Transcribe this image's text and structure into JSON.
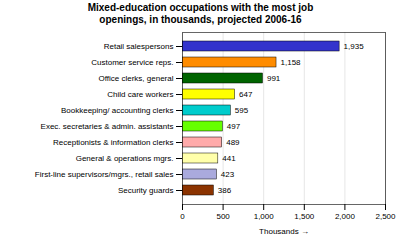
{
  "chart_data": {
    "type": "bar",
    "orientation": "horizontal",
    "title": "Mixed-education occupations with the most job\nopenings, in thousands, projected 2006-16",
    "categories": [
      "Retail salespersons",
      "Customer service reps.",
      "Office clerks, general",
      "Child care workers",
      "Bookkeeping/ accounting clerks",
      "Exec. secretaries & admin. assistants",
      "Receptionists & information clerks",
      "General & operations mgrs.",
      "First-line supervisors/mgrs., retail sales",
      "Security guards"
    ],
    "values": [
      1935,
      1158,
      991,
      647,
      595,
      497,
      489,
      441,
      423,
      386
    ],
    "value_labels": [
      "1,935",
      "1,158",
      "991",
      "647",
      "595",
      "497",
      "489",
      "441",
      "423",
      "386"
    ],
    "data_labels": true,
    "colors": [
      "#3333cc",
      "#ff8c00",
      "#006400",
      "#ffff00",
      "#00cccc",
      "#66ff00",
      "#ffaaaa",
      "#ffffaa",
      "#aaaadd",
      "#8b3300"
    ],
    "xlabel": "Thousands",
    "xlim": [
      0,
      2500
    ],
    "xticks": [
      0,
      {
        "value": 500,
        "label": "500"
      },
      {
        "value": 1000,
        "label": "1,000"
      },
      {
        "value": 1500,
        "label": "1,500"
      },
      {
        "value": 2000,
        "label": "2,000"
      },
      {
        "value": 2500,
        "label": "2,500"
      }
    ],
    "grid": true
  }
}
